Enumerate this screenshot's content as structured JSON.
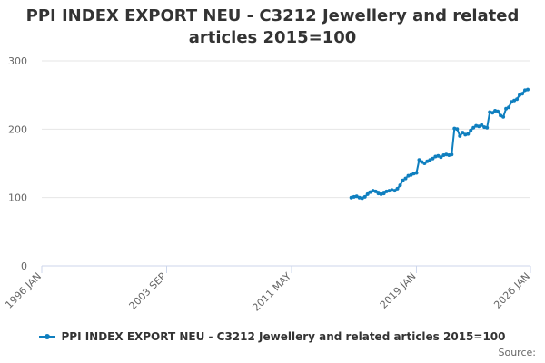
{
  "chart_data": {
    "type": "line",
    "title": "PPI INDEX EXPORT NEU - C3212 Jewellery and related articles 2015=100",
    "xlabel": "",
    "ylabel": "",
    "ylim": [
      0,
      300
    ],
    "yticks": [
      0,
      100,
      200,
      300
    ],
    "xlim": [
      "1996-01",
      "2026-01"
    ],
    "xticks": [
      "1996 JAN",
      "2003 SEP",
      "2011 MAY",
      "2019 JAN",
      "2026 JAN"
    ],
    "grid": "horizontal",
    "legend_position": "bottom",
    "series": [
      {
        "name": "PPI INDEX EXPORT NEU - C3212 Jewellery and related articles 2015=100",
        "color": "#0f7fbf",
        "points": [
          [
            "2015-01",
            100
          ],
          [
            "2015-03",
            101
          ],
          [
            "2015-05",
            102
          ],
          [
            "2015-07",
            100
          ],
          [
            "2015-09",
            99
          ],
          [
            "2015-11",
            101
          ],
          [
            "2016-01",
            105
          ],
          [
            "2016-03",
            108
          ],
          [
            "2016-05",
            110
          ],
          [
            "2016-07",
            109
          ],
          [
            "2016-09",
            106
          ],
          [
            "2016-11",
            105
          ],
          [
            "2017-01",
            106
          ],
          [
            "2017-03",
            109
          ],
          [
            "2017-05",
            110
          ],
          [
            "2017-07",
            111
          ],
          [
            "2017-09",
            110
          ],
          [
            "2017-11",
            113
          ],
          [
            "2018-01",
            118
          ],
          [
            "2018-03",
            125
          ],
          [
            "2018-05",
            128
          ],
          [
            "2018-07",
            132
          ],
          [
            "2018-09",
            133
          ],
          [
            "2018-11",
            135
          ],
          [
            "2019-01",
            136
          ],
          [
            "2019-03",
            155
          ],
          [
            "2019-05",
            152
          ],
          [
            "2019-07",
            150
          ],
          [
            "2019-09",
            153
          ],
          [
            "2019-11",
            155
          ],
          [
            "2020-01",
            157
          ],
          [
            "2020-03",
            160
          ],
          [
            "2020-05",
            161
          ],
          [
            "2020-07",
            159
          ],
          [
            "2020-09",
            162
          ],
          [
            "2020-11",
            163
          ],
          [
            "2021-01",
            162
          ],
          [
            "2021-03",
            163
          ],
          [
            "2021-05",
            201
          ],
          [
            "2021-07",
            200
          ],
          [
            "2021-09",
            190
          ],
          [
            "2021-11",
            195
          ],
          [
            "2022-01",
            192
          ],
          [
            "2022-03",
            193
          ],
          [
            "2022-05",
            198
          ],
          [
            "2022-07",
            202
          ],
          [
            "2022-09",
            205
          ],
          [
            "2022-11",
            204
          ],
          [
            "2023-01",
            206
          ],
          [
            "2023-03",
            203
          ],
          [
            "2023-05",
            202
          ],
          [
            "2023-07",
            225
          ],
          [
            "2023-09",
            224
          ],
          [
            "2023-11",
            227
          ],
          [
            "2024-01",
            226
          ],
          [
            "2024-03",
            220
          ],
          [
            "2024-05",
            218
          ],
          [
            "2024-07",
            230
          ],
          [
            "2024-09",
            232
          ],
          [
            "2024-11",
            240
          ],
          [
            "2025-01",
            242
          ],
          [
            "2025-03",
            244
          ],
          [
            "2025-05",
            250
          ],
          [
            "2025-07",
            252
          ],
          [
            "2025-09",
            257
          ],
          [
            "2025-11",
            258
          ]
        ]
      }
    ],
    "credits": "Source:"
  }
}
